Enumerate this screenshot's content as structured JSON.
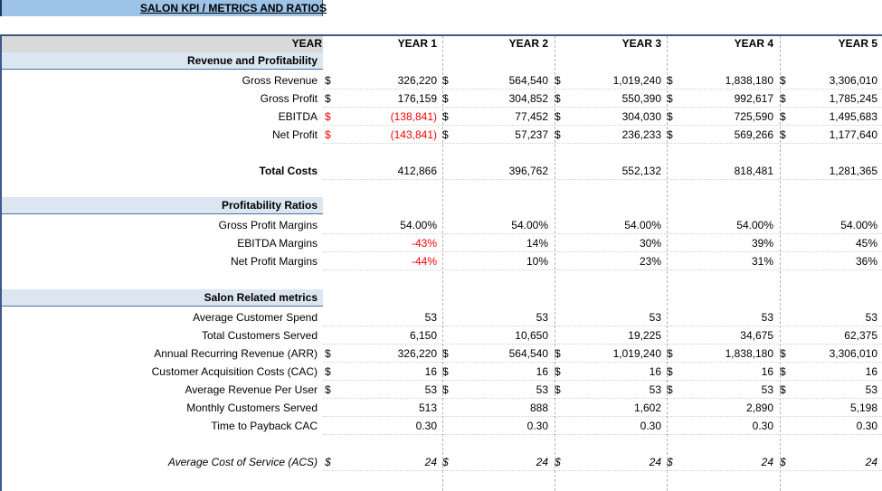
{
  "title": "SALON KPI / METRICS AND RATIOS",
  "header": {
    "label": "YEAR",
    "years": [
      "YEAR 1",
      "YEAR 2",
      "YEAR 3",
      "YEAR 4",
      "YEAR 5"
    ]
  },
  "currency_symbol": "$",
  "colors": {
    "negative": "#ff0000",
    "section_band": "#dce6f1",
    "title_band": "#9dc3e6",
    "header_band": "#d9d9d9"
  },
  "sections": {
    "revenue": {
      "title": "Revenue and Profitability",
      "rows": [
        {
          "label": "Gross Revenue",
          "dollar": true,
          "values": [
            "326,220",
            "564,540",
            "1,019,240",
            "1,838,180",
            "3,306,010"
          ],
          "negative": [
            false,
            false,
            false,
            false,
            false
          ]
        },
        {
          "label": "Gross Profit",
          "dollar": true,
          "values": [
            "176,159",
            "304,852",
            "550,390",
            "992,617",
            "1,785,245"
          ],
          "negative": [
            false,
            false,
            false,
            false,
            false
          ]
        },
        {
          "label": "EBITDA",
          "dollar": true,
          "values": [
            "(138,841)",
            "77,452",
            "304,030",
            "725,590",
            "1,495,683"
          ],
          "negative": [
            true,
            false,
            false,
            false,
            false
          ]
        },
        {
          "label": "Net Profit",
          "dollar": true,
          "values": [
            "(143,841)",
            "57,237",
            "236,233",
            "569,266",
            "1,177,640"
          ],
          "negative": [
            true,
            false,
            false,
            false,
            false
          ]
        }
      ],
      "total": {
        "label": "Total Costs",
        "values": [
          "412,866",
          "396,762",
          "552,132",
          "818,481",
          "1,281,365"
        ]
      }
    },
    "profitability": {
      "title": "Profitability Ratios",
      "rows": [
        {
          "label": "Gross Profit Margins",
          "values": [
            "54.00%",
            "54.00%",
            "54.00%",
            "54.00%",
            "54.00%"
          ],
          "negative": [
            false,
            false,
            false,
            false,
            false
          ]
        },
        {
          "label": "EBITDA Margins",
          "values": [
            "-43%",
            "14%",
            "30%",
            "39%",
            "45%"
          ],
          "negative": [
            true,
            false,
            false,
            false,
            false
          ]
        },
        {
          "label": "Net Profit Margins",
          "values": [
            "-44%",
            "10%",
            "23%",
            "31%",
            "36%"
          ],
          "negative": [
            true,
            false,
            false,
            false,
            false
          ]
        }
      ]
    },
    "salon": {
      "title": "Salon Related metrics",
      "rows": [
        {
          "label": "Average  Customer Spend",
          "dollar": false,
          "values": [
            "53",
            "53",
            "53",
            "53",
            "53"
          ]
        },
        {
          "label": "Total Customers Served",
          "dollar": false,
          "values": [
            "6,150",
            "10,650",
            "19,225",
            "34,675",
            "62,375"
          ]
        },
        {
          "label": "Annual Recurring Revenue (ARR)",
          "dollar": true,
          "values": [
            "326,220",
            "564,540",
            "1,019,240",
            "1,838,180",
            "3,306,010"
          ]
        },
        {
          "label": "Customer Acquisition Costs (CAC)",
          "dollar": true,
          "values": [
            "16",
            "16",
            "16",
            "16",
            "16"
          ]
        },
        {
          "label": "Average Revenue Per User",
          "dollar": true,
          "values": [
            "53",
            "53",
            "53",
            "53",
            "53"
          ]
        },
        {
          "label": "Monthly Customers Served",
          "dollar": false,
          "values": [
            "513",
            "888",
            "1,602",
            "2,890",
            "5,198"
          ]
        },
        {
          "label": "Time to Payback CAC",
          "dollar": false,
          "values": [
            "0.30",
            "0.30",
            "0.30",
            "0.30",
            "0.30"
          ]
        }
      ],
      "acs": {
        "label": "Average Cost of Service (ACS)",
        "values": [
          "24",
          "24",
          "24",
          "24",
          "24"
        ]
      }
    }
  }
}
